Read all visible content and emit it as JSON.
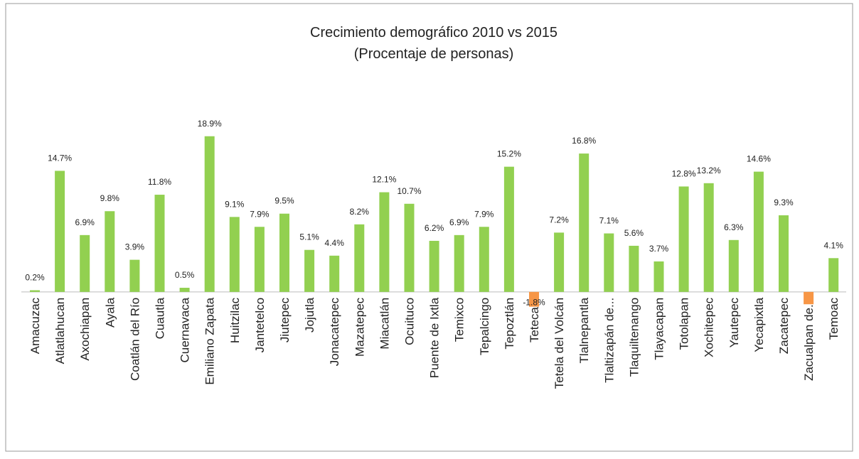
{
  "chart_data": {
    "type": "bar",
    "title": "Crecimiento demográfico 2010 vs 2015",
    "subtitle": "(Procentaje de personas)",
    "categories": [
      "Amacuzac",
      "Atlatlahucan",
      "Axochiapan",
      "Ayala",
      "Coatlán del Río",
      "Cuautla",
      "Cuernavaca",
      "Emiliano Zapata",
      "Huitzilac",
      "Jantetelco",
      "Jiutepec",
      "Jojutla",
      "Jonacatepec",
      "Mazatepec",
      "Miacatlán",
      "Ocuituco",
      "Puente de Ixtla",
      "Temixco",
      "Tepalcingo",
      "Tepoztlán",
      "Tetecala",
      "Tetela del Volcán",
      "Tlalnepantla",
      "Tlaltizapán de...",
      "Tlaquiltenango",
      "Tlayacapan",
      "Totolapan",
      "Xochitepec",
      "Yautepec",
      "Yecapixtla",
      "Zacatepec",
      "Zacualpan de...",
      "Temoac"
    ],
    "values": [
      0.2,
      14.7,
      6.9,
      9.8,
      3.9,
      11.8,
      0.5,
      18.9,
      9.1,
      7.9,
      9.5,
      5.1,
      4.4,
      8.2,
      12.1,
      10.7,
      6.2,
      6.9,
      7.9,
      15.2,
      -1.8,
      7.2,
      16.8,
      7.1,
      5.6,
      3.7,
      12.8,
      13.2,
      6.3,
      14.6,
      9.3,
      -1.5,
      4.1
    ],
    "value_labels": [
      "0.2%",
      "14.7%",
      "6.9%",
      "9.8%",
      "3.9%",
      "11.8%",
      "0.5%",
      "18.9%",
      "9.1%",
      "7.9%",
      "9.5%",
      "5.1%",
      "4.4%",
      "8.2%",
      "12.1%",
      "10.7%",
      "6.2%",
      "6.9%",
      "7.9%",
      "15.2%",
      "-1.8%",
      "7.2%",
      "16.8%",
      "7.1%",
      "5.6%",
      "3.7%",
      "12.8%",
      "13.2%",
      "6.3%",
      "14.6%",
      "9.3%",
      null,
      "4.1%"
    ],
    "color": "#92d050",
    "negative_color": "#f79646",
    "ylim": [
      -2,
      20
    ]
  }
}
